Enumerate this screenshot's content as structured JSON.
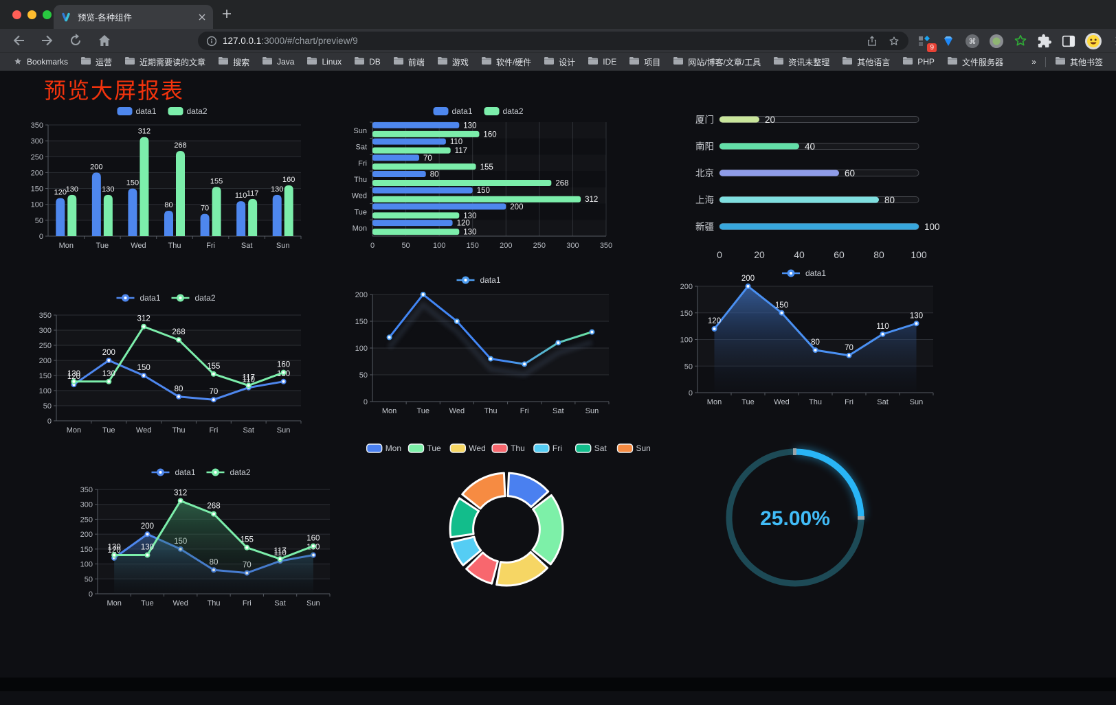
{
  "browser": {
    "tab_title": "预览-各种组件",
    "url_host": "127.0.0.1",
    "url_rest": ":3000/#/chart/preview/9",
    "extension_badge": "9",
    "bookmarks_root_label": "Bookmarks",
    "bookmark_folders": [
      "运营",
      "近期需要读的文章",
      "搜索",
      "Java",
      "Linux",
      "DB",
      "前端",
      "游戏",
      "软件/硬件",
      "设计",
      "IDE",
      "项目",
      "网站/博客/文章/工具",
      "资讯未整理",
      "其他语言",
      "PHP",
      "文件服务器"
    ],
    "bookmarks_overflow": "»",
    "other_bookmarks_label": "其他书签",
    "icons": [
      "favicon-v",
      "tab-close-icon",
      "new-tab-icon",
      "back-icon",
      "forward-icon",
      "reload-icon",
      "home-icon",
      "page-info-icon",
      "share-icon",
      "bookmark-star-icon",
      "extension-grid-icon",
      "extension-gem-icon",
      "extension-command-icon",
      "extension-record-icon",
      "extension-star-icon",
      "extensions-puzzle-icon",
      "sidebar-icon",
      "profile-avatar",
      "menu-kebab-icon",
      "traffic-close",
      "traffic-minimize",
      "traffic-zoom"
    ]
  },
  "page": {
    "title": "预览大屏报表",
    "title_color": "#f2330d",
    "background": "#0e0f13"
  },
  "chart_data": [
    {
      "id": "grouped-bar",
      "type": "bar",
      "legend_position": "top",
      "grid": true,
      "categories": [
        "Mon",
        "Tue",
        "Wed",
        "Thu",
        "Fri",
        "Sat",
        "Sun"
      ],
      "series": [
        {
          "name": "data1",
          "color": "#4e87ee",
          "values": [
            120,
            200,
            150,
            80,
            70,
            110,
            130
          ]
        },
        {
          "name": "data2",
          "color": "#7ceeab",
          "values": [
            130,
            130,
            312,
            268,
            155,
            117,
            160
          ]
        }
      ],
      "ylim": [
        0,
        350
      ],
      "ytick_step": 50
    },
    {
      "id": "horizontal-bar",
      "type": "bar",
      "orientation": "horizontal",
      "legend_position": "top",
      "grid": true,
      "categories": [
        "Mon",
        "Tue",
        "Wed",
        "Thu",
        "Fri",
        "Sat",
        "Sun"
      ],
      "series": [
        {
          "name": "data1",
          "color": "#4e87ee",
          "values": [
            120,
            200,
            150,
            80,
            70,
            110,
            130
          ]
        },
        {
          "name": "data2",
          "color": "#7ceeab",
          "values": [
            130,
            130,
            312,
            268,
            155,
            117,
            160
          ]
        }
      ],
      "xlim": [
        0,
        350
      ],
      "xtick_step": 50
    },
    {
      "id": "progress-bars",
      "type": "bar",
      "orientation": "horizontal-progress",
      "items": [
        {
          "label": "厦门",
          "value": 20,
          "color": "#c9e59b"
        },
        {
          "label": "南阳",
          "value": 40,
          "color": "#63dfa8"
        },
        {
          "label": "北京",
          "value": 60,
          "color": "#8f9ce8"
        },
        {
          "label": "上海",
          "value": 80,
          "color": "#7fdfe0"
        },
        {
          "label": "新疆",
          "value": 100,
          "color": "#38a7dd"
        }
      ],
      "xlim": [
        0,
        100
      ],
      "xticks": [
        0,
        20,
        40,
        60,
        80,
        100
      ]
    },
    {
      "id": "line-two-series",
      "type": "line",
      "legend_position": "top",
      "grid": true,
      "categories": [
        "Mon",
        "Tue",
        "Wed",
        "Thu",
        "Fri",
        "Sat",
        "Sun"
      ],
      "series": [
        {
          "name": "data1",
          "color": "#4e87ee",
          "values": [
            120,
            200,
            150,
            80,
            70,
            110,
            130
          ]
        },
        {
          "name": "data2",
          "color": "#7ceeab",
          "values": [
            130,
            130,
            312,
            268,
            155,
            117,
            160
          ]
        }
      ],
      "ylim": [
        0,
        350
      ],
      "ytick_step": 50,
      "point_labels": true
    },
    {
      "id": "line-gradient",
      "type": "line",
      "legend_position": "top",
      "grid": true,
      "categories": [
        "Mon",
        "Tue",
        "Wed",
        "Thu",
        "Fri",
        "Sat",
        "Sun"
      ],
      "series": [
        {
          "name": "data1",
          "gradient": [
            "#4286f5",
            "#6ce8a3"
          ],
          "color": "#4e9df0",
          "values": [
            120,
            200,
            150,
            80,
            70,
            110,
            130
          ]
        }
      ],
      "ylim": [
        0,
        200
      ],
      "ytick_step": 50,
      "point_labels": false,
      "shadow": true
    },
    {
      "id": "area-single",
      "type": "area",
      "legend_position": "top",
      "grid": true,
      "categories": [
        "Mon",
        "Tue",
        "Wed",
        "Thu",
        "Fri",
        "Sat",
        "Sun"
      ],
      "series": [
        {
          "name": "data1",
          "color": "#4a90f2",
          "area_from": "rgba(62,112,190,0.75)",
          "area_to": "rgba(25,35,55,0.05)",
          "values": [
            120,
            200,
            150,
            80,
            70,
            110,
            130
          ]
        }
      ],
      "ylim": [
        0,
        200
      ],
      "ytick_step": 50,
      "point_labels": true
    },
    {
      "id": "area-two-series",
      "type": "area",
      "legend_position": "top",
      "grid": true,
      "categories": [
        "Mon",
        "Tue",
        "Wed",
        "Thu",
        "Fri",
        "Sat",
        "Sun"
      ],
      "series": [
        {
          "name": "data1",
          "color": "#4e87ee",
          "area_from": "rgba(60,110,185,0.55)",
          "area_to": "rgba(25,35,55,0.04)",
          "values": [
            120,
            200,
            150,
            80,
            70,
            110,
            130
          ]
        },
        {
          "name": "data2",
          "color": "#7ceeab",
          "area_from": "rgba(64,150,104,0.55)",
          "area_to": "rgba(25,45,38,0.04)",
          "values": [
            130,
            130,
            312,
            268,
            155,
            117,
            160
          ]
        }
      ],
      "ylim": [
        0,
        350
      ],
      "ytick_step": 50,
      "point_labels": true
    },
    {
      "id": "donut",
      "type": "pie",
      "legend_position": "top",
      "inner_radius_ratio": 0.59,
      "categories": [
        "Mon",
        "Tue",
        "Wed",
        "Thu",
        "Fri",
        "Sat",
        "Sun"
      ],
      "values": [
        120,
        200,
        150,
        80,
        70,
        110,
        130
      ],
      "colors": [
        "#4a80f0",
        "#7df0a8",
        "#f6d664",
        "#f8676e",
        "#55cdf4",
        "#12bd8b",
        "#f68b42"
      ]
    },
    {
      "id": "gauge",
      "type": "gauge",
      "value": 25,
      "label": "25.00%",
      "color": "#29b5f6",
      "track_color": "#1d4a56",
      "text_color": "#41bcf8"
    }
  ]
}
